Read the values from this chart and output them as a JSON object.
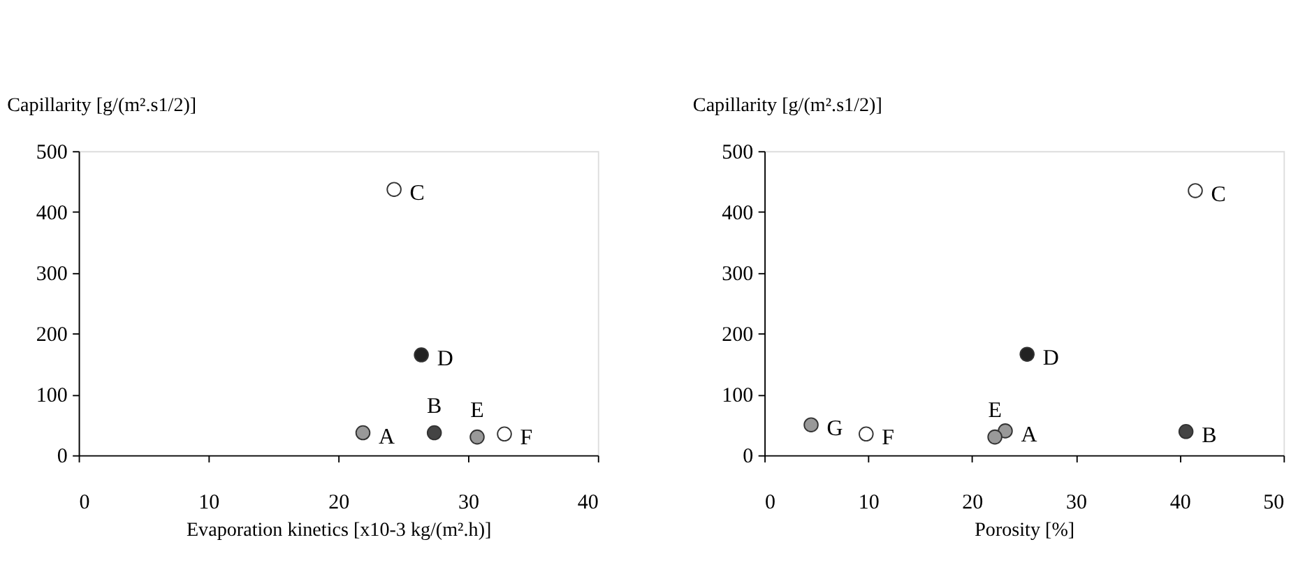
{
  "chart_data": [
    {
      "type": "scatter",
      "xlabel": "Evaporation kinetics [x10-3 kg/(m².h)]",
      "ylabel": "Capillarity [g/(m².s1/2)]",
      "xlim": [
        0,
        40
      ],
      "ylim": [
        0,
        500
      ],
      "xticks": [
        0,
        10,
        20,
        30,
        40
      ],
      "yticks": [
        0,
        100,
        200,
        300,
        400,
        500
      ],
      "marker": "circle",
      "grid": false,
      "x": [
        21.9,
        27.4,
        24.3,
        26.4,
        30.7,
        32.8
      ],
      "values": [
        37,
        37,
        437,
        165,
        30,
        35
      ],
      "colors": [
        "#999999",
        "#444444",
        "#ffffff",
        "#222222",
        "#999999",
        "#ffffff"
      ],
      "annotations": [
        {
          "text": "A",
          "x": 21.9,
          "y": 37
        },
        {
          "text": "B",
          "x": 27.4,
          "y": 37
        },
        {
          "text": "C",
          "x": 24.3,
          "y": 437
        },
        {
          "text": "D",
          "x": 26.4,
          "y": 165
        },
        {
          "text": "E",
          "x": 30.7,
          "y": 30
        },
        {
          "text": "F",
          "x": 32.8,
          "y": 35
        }
      ]
    },
    {
      "type": "scatter",
      "xlabel": "Porosity [%]",
      "ylabel": "Capillarity [g/(m².s1/2)]",
      "xlim": [
        0,
        50
      ],
      "ylim": [
        0,
        500
      ],
      "xticks": [
        0,
        10,
        20,
        30,
        40,
        50
      ],
      "yticks": [
        0,
        100,
        200,
        300,
        400,
        500
      ],
      "marker": "circle",
      "grid": false,
      "x": [
        23.2,
        40.6,
        41.5,
        25.3,
        22.2,
        9.8,
        4.5
      ],
      "values": [
        40,
        39,
        435,
        166,
        30,
        35,
        50
      ],
      "colors": [
        "#999999",
        "#444444",
        "#ffffff",
        "#222222",
        "#999999",
        "#ffffff",
        "#999999"
      ],
      "annotations": [
        {
          "text": "A",
          "x": 23.2,
          "y": 40
        },
        {
          "text": "B",
          "x": 40.6,
          "y": 39
        },
        {
          "text": "C",
          "x": 41.5,
          "y": 435
        },
        {
          "text": "D",
          "x": 25.3,
          "y": 166
        },
        {
          "text": "E",
          "x": 22.2,
          "y": 30
        },
        {
          "text": "F",
          "x": 9.8,
          "y": 35
        },
        {
          "text": "G",
          "x": 4.5,
          "y": 50
        }
      ]
    }
  ]
}
